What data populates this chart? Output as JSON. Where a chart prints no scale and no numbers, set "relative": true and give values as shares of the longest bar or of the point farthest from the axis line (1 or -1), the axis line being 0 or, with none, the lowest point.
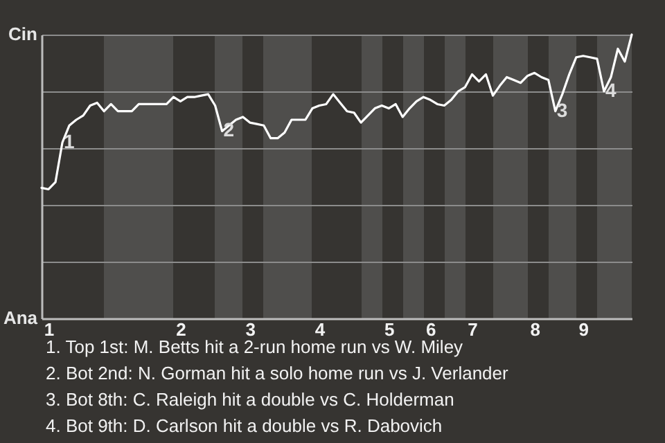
{
  "chart_data": {
    "type": "line",
    "relative": true,
    "categories": [
      null,
      "1",
      null,
      null,
      null,
      null,
      null,
      null,
      null,
      null,
      null,
      null,
      null,
      null,
      null,
      null,
      null,
      null,
      null,
      null,
      "2",
      null,
      null,
      null,
      null,
      null,
      null,
      null,
      null,
      null,
      "3",
      null,
      null,
      null,
      null,
      null,
      null,
      null,
      null,
      null,
      "4",
      null,
      null,
      null,
      null,
      null,
      null,
      null,
      null,
      null,
      "5",
      null,
      null,
      null,
      null,
      null,
      "6",
      null,
      null,
      null,
      null,
      null,
      "7",
      null,
      null,
      null,
      null,
      null,
      null,
      null,
      null,
      "8",
      null,
      null,
      null,
      null,
      null,
      null,
      "9",
      null,
      null,
      null,
      null,
      null,
      null,
      null
    ],
    "series": [
      {
        "color": "#ffffff",
        "values": [
          0.46,
          0.455,
          0.48,
          0.62,
          0.68,
          0.7,
          0.715,
          0.75,
          0.76,
          0.73,
          0.755,
          0.73,
          0.73,
          0.73,
          0.755,
          0.755,
          0.755,
          0.755,
          0.755,
          0.78,
          0.765,
          0.78,
          0.78,
          0.785,
          0.79,
          0.75,
          0.66,
          0.68,
          0.7,
          0.71,
          0.69,
          0.685,
          0.68,
          0.635,
          0.635,
          0.655,
          0.7,
          0.7,
          0.7,
          0.74,
          0.75,
          0.755,
          0.79,
          0.76,
          0.73,
          0.725,
          0.69,
          0.715,
          0.74,
          0.75,
          0.74,
          0.755,
          0.71,
          0.74,
          0.765,
          0.78,
          0.77,
          0.755,
          0.75,
          0.77,
          0.8,
          0.815,
          0.86,
          0.835,
          0.86,
          0.785,
          0.82,
          0.85,
          0.84,
          0.83,
          0.855,
          0.865,
          0.85,
          0.84,
          0.73,
          0.79,
          0.86,
          0.92,
          0.925,
          0.92,
          0.915,
          0.8,
          0.85,
          0.95,
          0.905,
          1
        ]
      }
    ],
    "grid": "y",
    "annotations": [
      {
        "text": "1",
        "y": 0.62
      },
      {
        "text": "2",
        "y": 0.66
      },
      {
        "text": "3",
        "y": 0.73
      },
      {
        "text": "4",
        "y": 0.8
      },
      "Cin",
      "Ana",
      "1. Top 1st: M. Betts hit a 2-run home run vs W. Miley",
      "2. Bot 2nd: N. Gorman hit a solo home run vs J. Verlander",
      "3. Bot 8th: C. Raleigh hit a double vs C. Holderman",
      "4. Bot 9th: D. Carlson hit a double vs R. Dabovich"
    ]
  }
}
